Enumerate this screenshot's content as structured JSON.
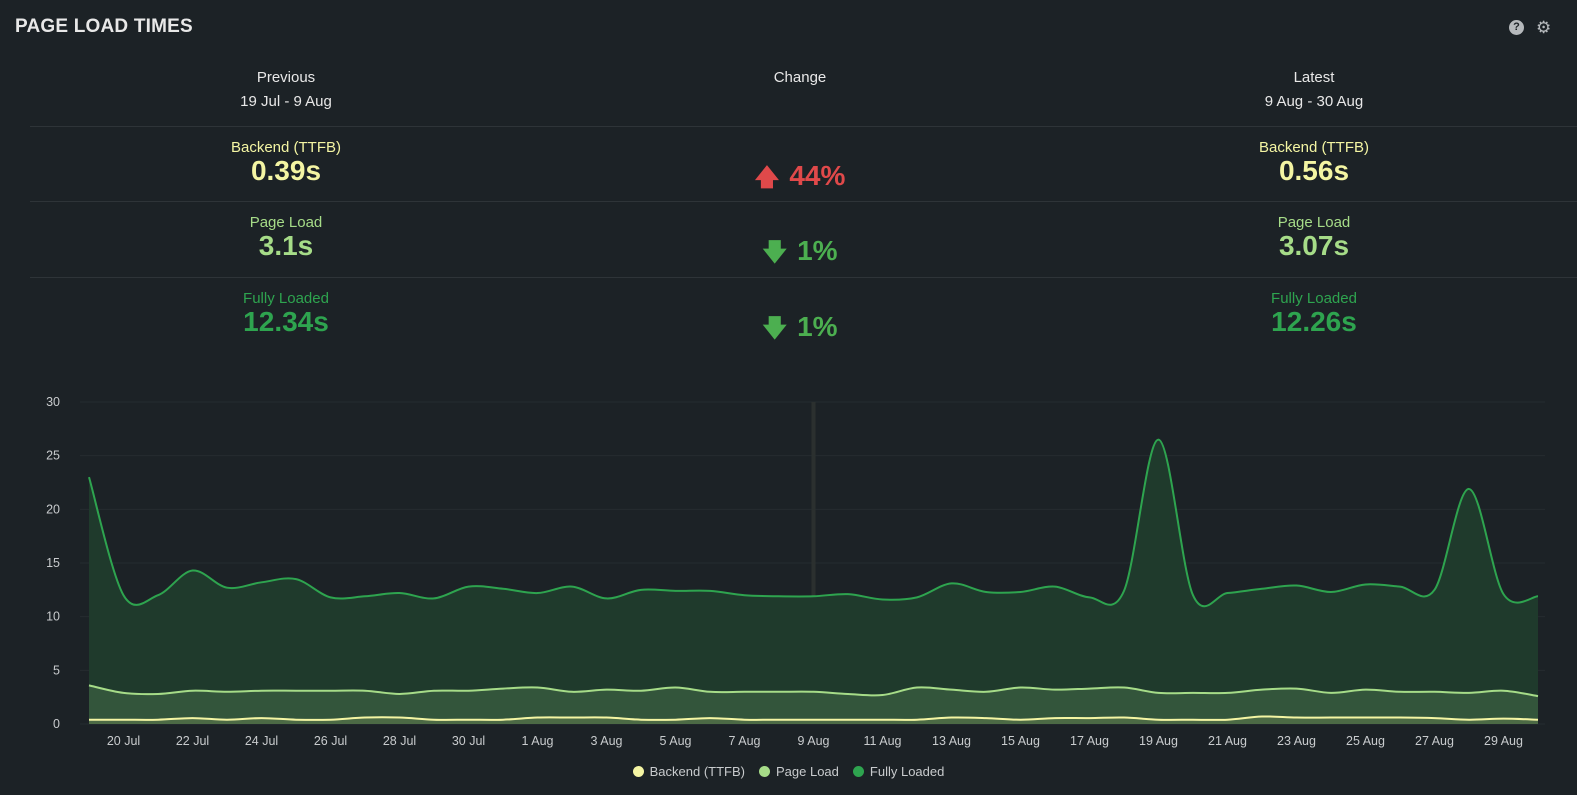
{
  "header": {
    "title": "PAGE LOAD TIMES",
    "help_icon": "?",
    "settings_icon": "⚙"
  },
  "columns": {
    "previous": {
      "heading": "Previous",
      "dates": "19 Jul - 9 Aug"
    },
    "change": {
      "heading": "Change"
    },
    "latest": {
      "heading": "Latest",
      "dates": "9 Aug - 30 Aug"
    }
  },
  "metrics": [
    {
      "label": "Backend (TTFB)",
      "previous": "0.39s",
      "latest": "0.56s",
      "change": "44%",
      "direction": "up",
      "arrow": "🡅",
      "color": "#f4f5a3",
      "change_color": "#e0494a"
    },
    {
      "label": "Page Load",
      "previous": "3.1s",
      "latest": "3.07s",
      "change": "1%",
      "direction": "down",
      "arrow": "🡇",
      "color": "#a6dc88",
      "change_color": "#4caf50"
    },
    {
      "label": "Fully Loaded",
      "previous": "12.34s",
      "latest": "12.26s",
      "change": "1%",
      "direction": "down",
      "arrow": "🡇",
      "color": "#2ea44f",
      "change_color": "#4caf50"
    }
  ],
  "chart_data": {
    "type": "area",
    "title": "",
    "xlabel": "",
    "ylabel": "",
    "ylim": [
      0,
      30
    ],
    "yticks": [
      "0",
      "5",
      "10",
      "15",
      "20",
      "25",
      "30"
    ],
    "x_start": "19 Jul",
    "x_end": "30 Aug",
    "xtick_labels": [
      "20 Jul",
      "22 Jul",
      "24 Jul",
      "26 Jul",
      "28 Jul",
      "30 Jul",
      "1 Aug",
      "3 Aug",
      "5 Aug",
      "7 Aug",
      "9 Aug",
      "11 Aug",
      "13 Aug",
      "15 Aug",
      "17 Aug",
      "19 Aug",
      "21 Aug",
      "23 Aug",
      "25 Aug",
      "27 Aug",
      "29 Aug"
    ],
    "divider_date": "9 Aug",
    "legend_position": "bottom-center",
    "grid": true,
    "series": [
      {
        "name": "Fully Loaded",
        "color": "#2ea44f",
        "fill": "#1f3a2c",
        "values": [
          23,
          12,
          12,
          14.3,
          12.7,
          13.2,
          13.5,
          11.8,
          11.9,
          12.2,
          11.7,
          12.8,
          12.6,
          12.2,
          12.8,
          11.7,
          12.5,
          12.4,
          12.4,
          12,
          11.9,
          11.9,
          12.1,
          11.6,
          11.8,
          13.1,
          12.3,
          12.3,
          12.8,
          11.8,
          12.4,
          26.5,
          12,
          12.2,
          12.6,
          12.9,
          12.3,
          13,
          12.8,
          12.5,
          21.9,
          12.1,
          11.9
        ]
      },
      {
        "name": "Page Load",
        "color": "#a6dc88",
        "fill": "#33553b",
        "values": [
          3.6,
          2.9,
          2.8,
          3.1,
          3,
          3.1,
          3.1,
          3.1,
          3.1,
          2.8,
          3.1,
          3.1,
          3.3,
          3.4,
          3,
          3.2,
          3.1,
          3.4,
          3,
          3,
          3,
          3,
          2.8,
          2.7,
          3.4,
          3.2,
          3,
          3.4,
          3.2,
          3.3,
          3.4,
          2.9,
          2.9,
          2.9,
          3.2,
          3.3,
          2.9,
          3.2,
          3,
          3,
          2.9,
          3.1,
          2.6
        ]
      },
      {
        "name": "Backend (TTFB)",
        "color": "#f4f5a3",
        "fill": "#4c6a45",
        "values": [
          0.4,
          0.4,
          0.4,
          0.55,
          0.4,
          0.55,
          0.4,
          0.4,
          0.6,
          0.6,
          0.4,
          0.4,
          0.4,
          0.6,
          0.6,
          0.6,
          0.4,
          0.4,
          0.55,
          0.4,
          0.4,
          0.4,
          0.4,
          0.4,
          0.4,
          0.6,
          0.55,
          0.4,
          0.55,
          0.55,
          0.6,
          0.4,
          0.4,
          0.4,
          0.7,
          0.6,
          0.6,
          0.6,
          0.6,
          0.55,
          0.4,
          0.5,
          0.4
        ]
      }
    ]
  }
}
